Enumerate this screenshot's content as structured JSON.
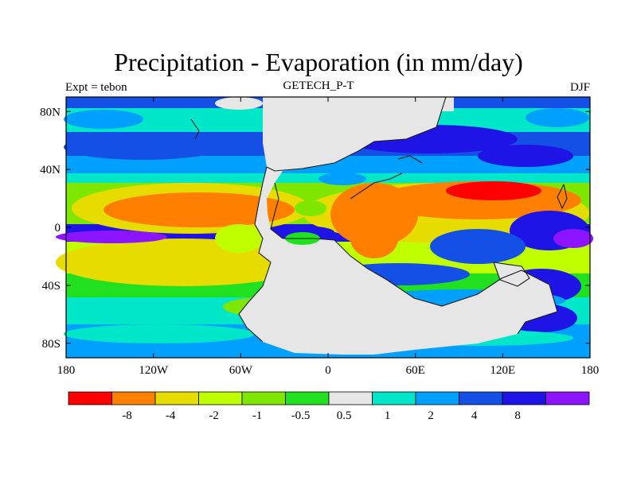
{
  "title": "Precipitation - Evaporation (in mm/day)",
  "subtitle_left": "Expt = tebon",
  "subtitle_center": "GETECH_P-T",
  "subtitle_right": "DJF",
  "axes": {
    "x_ticks": [
      "180",
      "120W",
      "60W",
      "0",
      "60E",
      "120E",
      "180"
    ],
    "y_ticks": [
      "80N",
      "40N",
      "0",
      "40S",
      "80S"
    ]
  },
  "colorbar": {
    "colors": [
      "#ff0000",
      "#ff8000",
      "#e6dc00",
      "#bfff00",
      "#7fe600",
      "#20e020",
      "#e6e6e6",
      "#00e6c8",
      "#00a0ff",
      "#1450e6",
      "#1e14e6",
      "#8c14ff"
    ],
    "labels": [
      "-8",
      "-4",
      "-2",
      "-1",
      "-0.5",
      "0.5",
      "1",
      "2",
      "4",
      "8"
    ]
  },
  "palette": {
    "land": "#e6e6e6",
    "coast": "#1a1a1a"
  }
}
